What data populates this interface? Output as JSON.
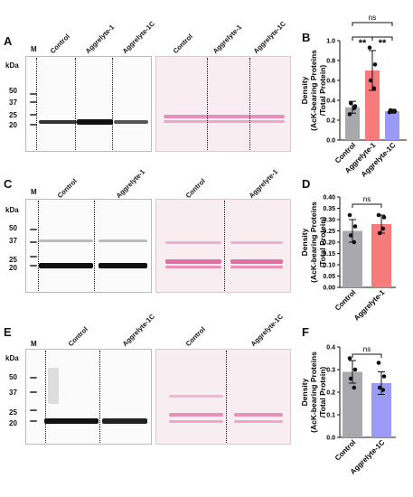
{
  "panels": {
    "A": {
      "letter": "A",
      "kda_label": "kDa",
      "marker_label": "M",
      "mw": [
        "50",
        "37",
        "25",
        "20"
      ],
      "lanes_blot": [
        "Control",
        "Aggrelyte-1",
        "Aggrelyte-1C"
      ],
      "lanes_ponceau": [
        "Control",
        "Aggrelyte-1",
        "Aggrelyte-1C"
      ]
    },
    "B": {
      "letter": "B"
    },
    "C": {
      "letter": "C",
      "kda_label": "kDa",
      "marker_label": "M",
      "mw": [
        "50",
        "37",
        "25",
        "20"
      ],
      "lanes_blot": [
        "Control",
        "Aggrelyte-1"
      ],
      "lanes_ponceau": [
        "Control",
        "Aggrelyte-1"
      ]
    },
    "D": {
      "letter": "D"
    },
    "E": {
      "letter": "E",
      "kda_label": "kDa",
      "marker_label": "M",
      "mw": [
        "50",
        "37",
        "25",
        "20"
      ],
      "lanes_blot": [
        "Control",
        "Aggrelyte-1C"
      ],
      "lanes_ponceau": [
        "Control",
        "Aggrelyte-1C"
      ]
    },
    "F": {
      "letter": "F"
    }
  },
  "colors": {
    "control": "#a9a9ad",
    "aggrelyte1": "#f77b7b",
    "aggrelyte1c": "#9b9bf7",
    "ponceau_band": "#e07aa8"
  },
  "chart_data": [
    {
      "type": "bar",
      "panel": "B",
      "ylabel": [
        "Density",
        "(AcK-bearing Proteins",
        "/Total Protein)"
      ],
      "ylim": [
        0,
        1.0
      ],
      "yticks": [
        "0.0",
        "0.2",
        "0.4",
        "0.6",
        "0.8",
        "1.0"
      ],
      "categories": [
        "Control",
        "Aggrelyte-1",
        "Aggrelyte-1C"
      ],
      "values": [
        0.33,
        0.7,
        0.29
      ],
      "errors": [
        0.06,
        0.2,
        0.02
      ],
      "points": [
        [
          0.26,
          0.34,
          0.37,
          0.32
        ],
        [
          0.93,
          0.76,
          0.6,
          0.52
        ],
        [
          0.28,
          0.29,
          0.3,
          0.29
        ]
      ],
      "significance": [
        "**",
        "**",
        "ns"
      ]
    },
    {
      "type": "bar",
      "panel": "D",
      "ylabel": [
        "Density",
        "(AcK-bearing Proteins",
        "/Total Protein)"
      ],
      "ylim": [
        0,
        0.4
      ],
      "yticks": [
        "0.00",
        "0.05",
        "0.10",
        "0.15",
        "0.20",
        "0.25",
        "0.30",
        "0.35",
        "0.40"
      ],
      "categories": [
        "Control",
        "Aggrelyte-1"
      ],
      "values": [
        0.25,
        0.28
      ],
      "errors": [
        0.05,
        0.04
      ],
      "points": [
        [
          0.32,
          0.27,
          0.23,
          0.2
        ],
        [
          0.32,
          0.31,
          0.24,
          0.26
        ]
      ],
      "significance": [
        "ns"
      ]
    },
    {
      "type": "bar",
      "panel": "F",
      "ylabel": [
        "Density",
        "(AcK-bearing Proteins",
        "/Total Protein)"
      ],
      "ylim": [
        0,
        0.4
      ],
      "yticks": [
        "0.0",
        "0.1",
        "0.2",
        "0.3",
        "0.4"
      ],
      "categories": [
        "Control",
        "Aggrelyte-1C"
      ],
      "values": [
        0.29,
        0.24
      ],
      "errors": [
        0.05,
        0.05
      ],
      "points": [
        [
          0.35,
          0.3,
          0.26,
          0.22
        ],
        [
          0.33,
          0.27,
          0.22,
          0.21
        ]
      ],
      "significance": [
        "ns"
      ]
    }
  ]
}
